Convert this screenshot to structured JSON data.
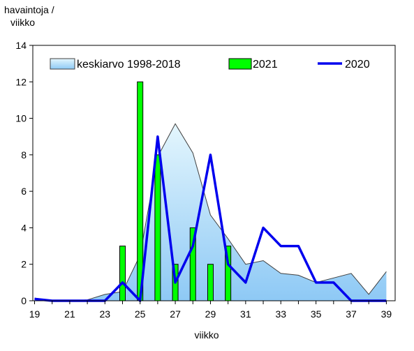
{
  "chart_data": {
    "type": "bar",
    "ylabel_lines": [
      "havaintoja  /",
      "viikko"
    ],
    "xlabel": "viikko",
    "ylim": [
      0,
      14
    ],
    "yticks": [
      "0",
      "2",
      "4",
      "6",
      "8",
      "10",
      "12",
      "14"
    ],
    "xlim": [
      18.9,
      39.5
    ],
    "xticks": [
      "19",
      "21",
      "23",
      "25",
      "27",
      "29",
      "31",
      "33",
      "35",
      "37",
      "39"
    ],
    "grid": false,
    "legend_position": "top",
    "series": [
      {
        "name": "keskiarvo 1998-2018",
        "kind": "area",
        "color_top": "#e4f6fd",
        "color_bottom": "#8ec9f5",
        "stroke": "#404040",
        "x": [
          19,
          20,
          21,
          22,
          23,
          24,
          25,
          26,
          27,
          28,
          29,
          30,
          31,
          32,
          33,
          34,
          35,
          36,
          37,
          38,
          39
        ],
        "values": [
          0.15,
          0.0,
          0.0,
          0.05,
          0.35,
          0.5,
          2.5,
          7.9,
          9.7,
          8.1,
          4.7,
          3.4,
          2.0,
          2.2,
          1.5,
          1.4,
          1.0,
          1.25,
          1.5,
          0.35,
          1.6
        ]
      },
      {
        "name": "2021",
        "kind": "bar",
        "color": "#00ff00",
        "x": [
          24,
          25,
          26,
          27,
          28,
          29,
          30
        ],
        "values": [
          3,
          12,
          8,
          2,
          4,
          2,
          3
        ]
      },
      {
        "name": "2020",
        "kind": "line",
        "color": "#0000ee",
        "x": [
          19,
          20,
          21,
          22,
          23,
          24,
          25,
          26,
          27,
          28,
          29,
          30,
          31,
          32,
          33,
          34,
          35,
          36,
          37,
          38,
          39
        ],
        "values": [
          0.1,
          0,
          0,
          0,
          0,
          1,
          0,
          9,
          1,
          3,
          8,
          2,
          1,
          4,
          3,
          3,
          1,
          1,
          0,
          0,
          0
        ]
      }
    ]
  }
}
